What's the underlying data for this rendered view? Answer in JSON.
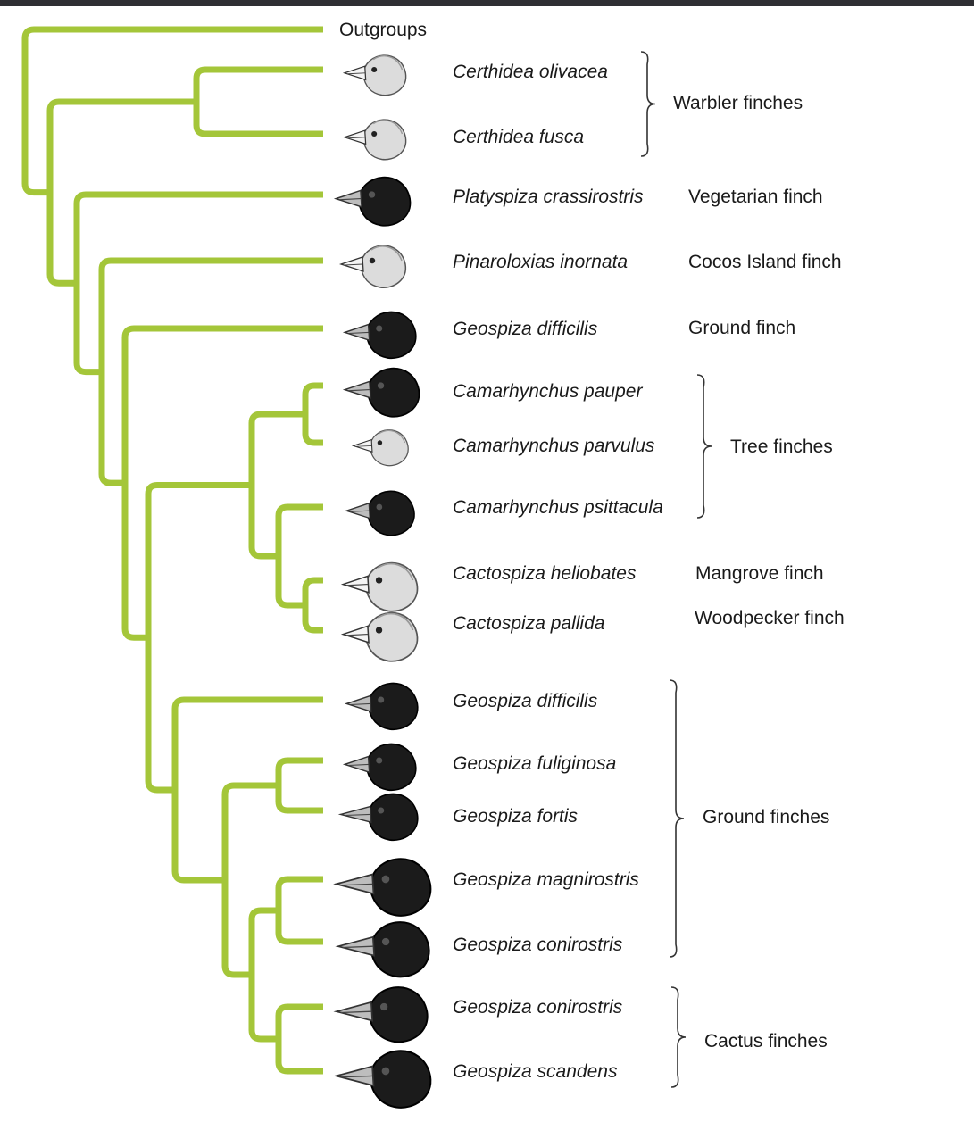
{
  "colors": {
    "branch": "#a4c639",
    "text": "#1a1a1a",
    "bracket": "#333333",
    "top_bar": "#2f2f33"
  },
  "outgroup_label": "Outgroups",
  "species": [
    {
      "name": "Certhidea olivacea",
      "head": "light"
    },
    {
      "name": "Certhidea fusca",
      "head": "light"
    },
    {
      "name": "Platyspiza crassirostris",
      "head": "dark"
    },
    {
      "name": "Pinaroloxias inornata",
      "head": "light"
    },
    {
      "name": "Geospiza difficilis",
      "head": "dark"
    },
    {
      "name": "Camarhynchus pauper",
      "head": "dark"
    },
    {
      "name": "Camarhynchus parvulus",
      "head": "light"
    },
    {
      "name": "Camarhynchus psittacula",
      "head": "dark"
    },
    {
      "name": "Cactospiza heliobates",
      "head": "light"
    },
    {
      "name": "Cactospiza pallida",
      "head": "light"
    },
    {
      "name": "Geospiza difficilis",
      "head": "dark"
    },
    {
      "name": "Geospiza fuliginosa",
      "head": "dark"
    },
    {
      "name": "Geospiza fortis",
      "head": "dark"
    },
    {
      "name": "Geospiza magnirostris",
      "head": "dark"
    },
    {
      "name": "Geospiza conirostris",
      "head": "dark"
    },
    {
      "name": "Geospiza conirostris",
      "head": "dark"
    },
    {
      "name": "Geospiza scandens",
      "head": "dark"
    }
  ],
  "groups": [
    {
      "label": "Warbler finches",
      "bracket": true
    },
    {
      "label": "Vegetarian finch",
      "bracket": false
    },
    {
      "label": "Cocos Island finch",
      "bracket": false
    },
    {
      "label": "Ground finch",
      "bracket": false
    },
    {
      "label": "Tree finches",
      "bracket": true
    },
    {
      "label": "Mangrove finch",
      "bracket": false
    },
    {
      "label": "Woodpecker finch",
      "bracket": false
    },
    {
      "label": "Ground finches",
      "bracket": true
    },
    {
      "label": "Cactus finches",
      "bracket": true
    }
  ]
}
